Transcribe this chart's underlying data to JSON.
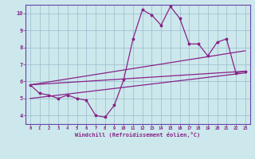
{
  "title": "",
  "xlabel": "Windchill (Refroidissement éolien,°C)",
  "xlim": [
    -0.5,
    23.5
  ],
  "ylim": [
    3.5,
    10.5
  ],
  "xticks": [
    0,
    1,
    2,
    3,
    4,
    5,
    6,
    7,
    8,
    9,
    10,
    11,
    12,
    13,
    14,
    15,
    16,
    17,
    18,
    19,
    20,
    21,
    22,
    23
  ],
  "yticks": [
    4,
    5,
    6,
    7,
    8,
    9,
    10
  ],
  "bg_color": "#cce8ec",
  "line_color": "#882288",
  "grid_color": "#99bbcc",
  "spine_color": "#6644aa",
  "main_line": [
    [
      0,
      5.8
    ],
    [
      1,
      5.3
    ],
    [
      2,
      5.2
    ],
    [
      3,
      5.0
    ],
    [
      4,
      5.2
    ],
    [
      5,
      5.0
    ],
    [
      6,
      4.9
    ],
    [
      7,
      4.0
    ],
    [
      8,
      3.9
    ],
    [
      9,
      4.6
    ],
    [
      10,
      6.1
    ],
    [
      11,
      8.5
    ],
    [
      12,
      10.2
    ],
    [
      13,
      9.9
    ],
    [
      14,
      9.3
    ],
    [
      15,
      10.4
    ],
    [
      16,
      9.7
    ],
    [
      17,
      8.2
    ],
    [
      18,
      8.2
    ],
    [
      19,
      7.5
    ],
    [
      20,
      8.3
    ],
    [
      21,
      8.5
    ],
    [
      22,
      6.5
    ],
    [
      23,
      6.6
    ]
  ],
  "trend_lines": [
    [
      [
        0,
        5.8
      ],
      [
        23,
        6.6
      ]
    ],
    [
      [
        0,
        5.8
      ],
      [
        23,
        7.8
      ]
    ],
    [
      [
        0,
        5.0
      ],
      [
        23,
        6.5
      ]
    ]
  ]
}
